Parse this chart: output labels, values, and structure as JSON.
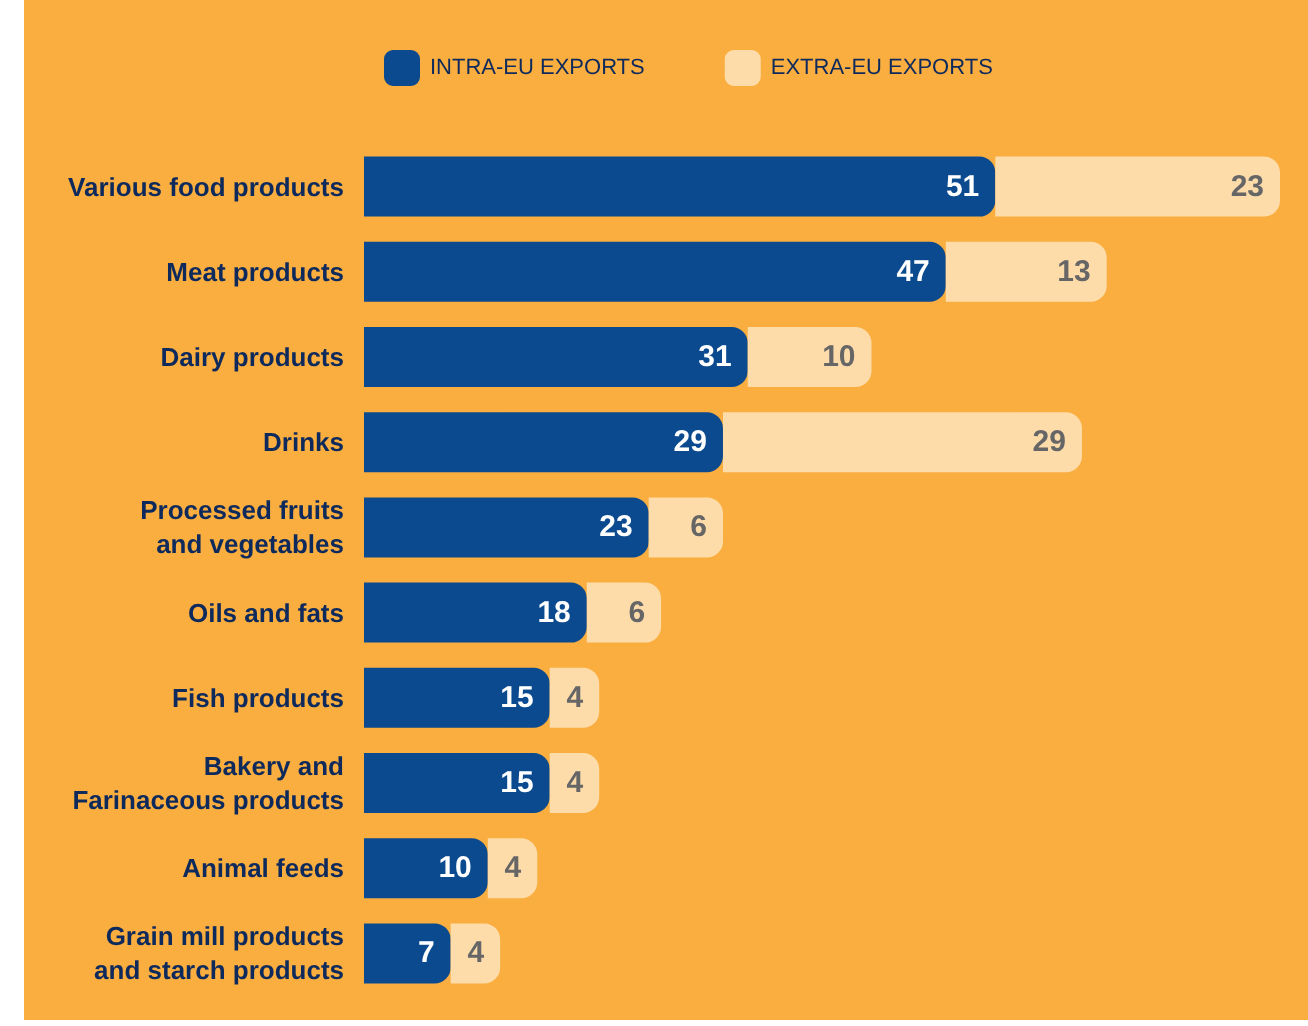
{
  "chart_data": {
    "type": "bar",
    "orientation": "horizontal",
    "stacked": true,
    "data_labels": true,
    "legend": "top",
    "categories": [
      "Various food products",
      "Meat products",
      "Dairy products",
      "Drinks",
      "Processed fruits\nand vegetables",
      "Oils and fats",
      "Fish products",
      "Bakery and\nFarinaceous products",
      "Animal feeds",
      "Grain mill products\nand starch products"
    ],
    "series": [
      {
        "name": "INTRA-EU EXPORTS",
        "color": "#0b4a8f",
        "values": [
          51,
          47,
          31,
          29,
          23,
          18,
          15,
          15,
          10,
          7
        ]
      },
      {
        "name": "EXTRA-EU EXPORTS",
        "color": "#fddcaa",
        "values": [
          23,
          13,
          10,
          29,
          6,
          6,
          4,
          4,
          4,
          4
        ]
      }
    ]
  }
}
